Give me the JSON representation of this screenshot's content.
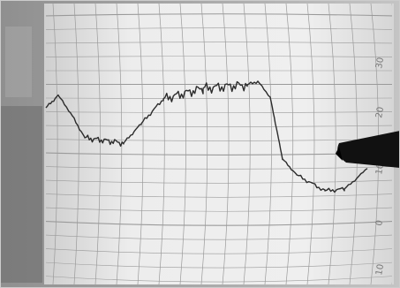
{
  "photo": {
    "subject": "",
    "scale_labels": [
      "30",
      "20",
      "10",
      "0",
      "10"
    ]
  },
  "colors": {
    "paper": "#e9e9e9",
    "grid": "#9a9a9a",
    "trace": "#2b2b2b",
    "pen": "#111111",
    "background": "#bdbdbd"
  },
  "icons": [
    "recorder-pen-icon"
  ]
}
